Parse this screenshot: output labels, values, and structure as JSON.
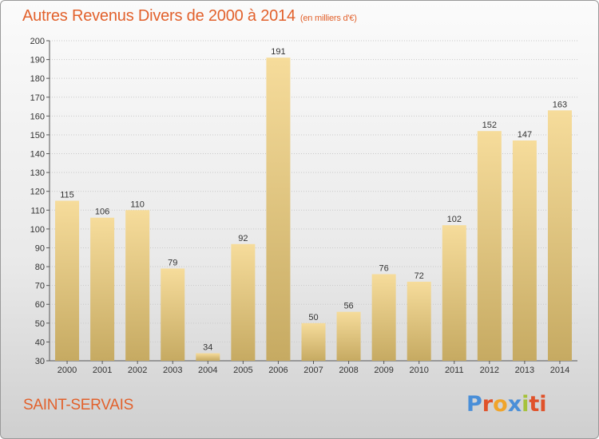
{
  "header": {
    "title": "Autres Revenus Divers de 2000 à 2014",
    "subtitle": "(en milliers d'€)"
  },
  "footer": {
    "place": "SAINT-SERVAIS",
    "logo_letters": [
      "P",
      "r",
      "o",
      "x",
      "i",
      "ti"
    ]
  },
  "colors": {
    "title": "#e2612c",
    "bar_light": "#f6dc9b",
    "bar_dark": "#c6aa62"
  },
  "chart_data": {
    "type": "bar",
    "title": "Autres Revenus Divers de 2000 à 2014",
    "subtitle": "(en milliers d'€)",
    "categories": [
      "2000",
      "2001",
      "2002",
      "2003",
      "2004",
      "2005",
      "2006",
      "2007",
      "2008",
      "2009",
      "2010",
      "2011",
      "2012",
      "2013",
      "2014"
    ],
    "values": [
      115,
      106,
      110,
      79,
      34,
      92,
      191,
      50,
      56,
      76,
      72,
      102,
      152,
      147,
      163
    ],
    "ylim": [
      30,
      200
    ],
    "yticks": [
      30,
      40,
      50,
      60,
      70,
      80,
      90,
      100,
      110,
      120,
      130,
      140,
      150,
      160,
      170,
      180,
      190,
      200
    ],
    "grid": true,
    "legend": "none"
  }
}
